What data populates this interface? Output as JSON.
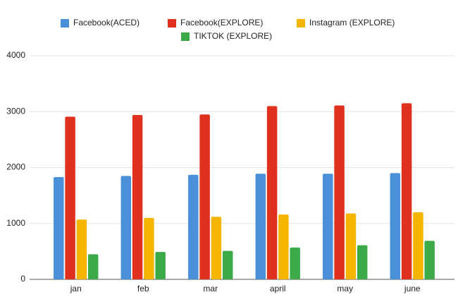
{
  "chart_data": {
    "type": "bar",
    "categories": [
      "jan",
      "feb",
      "mar",
      "april",
      "may",
      "june"
    ],
    "series": [
      {
        "name": "Facebook(ACED)",
        "color": "#4a90d9",
        "values": [
          1830,
          1850,
          1870,
          1890,
          1890,
          1900
        ]
      },
      {
        "name": "Facebook(EXPLORE)",
        "color": "#e0301e",
        "values": [
          2910,
          2940,
          2950,
          3100,
          3110,
          3150
        ]
      },
      {
        "name": "Instagram (EXPLORE)",
        "color": "#f5b400",
        "values": [
          1070,
          1100,
          1120,
          1160,
          1180,
          1200
        ]
      },
      {
        "name": "TIKTOK (EXPLORE)",
        "color": "#3daa4a",
        "values": [
          450,
          490,
          510,
          570,
          610,
          690
        ]
      }
    ],
    "ylim": [
      0,
      4000
    ],
    "yticks": [
      0,
      1000,
      2000,
      3000,
      4000
    ],
    "grid": true,
    "legend": "top"
  }
}
